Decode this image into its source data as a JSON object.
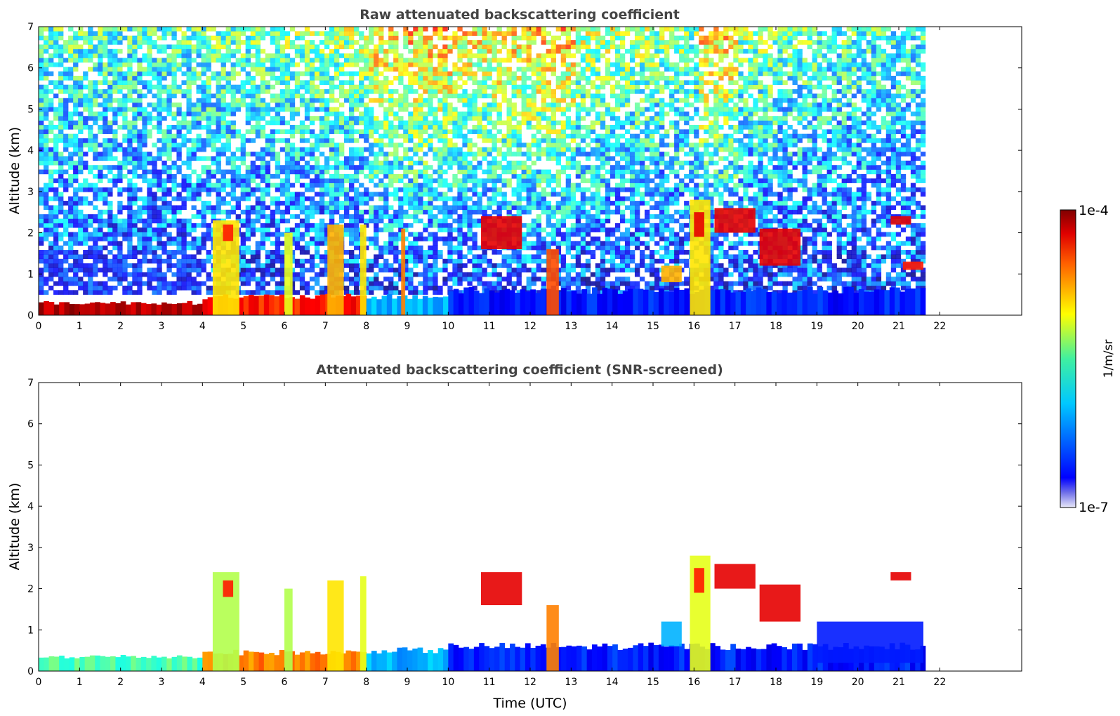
{
  "chart_data": [
    {
      "type": "heatmap",
      "title": "Raw attenuated backscattering coefficient",
      "xlabel": "",
      "ylabel": "Altitude (km)",
      "xlim": [
        0,
        24
      ],
      "ylim": [
        0,
        7
      ],
      "x_ticks": [
        "0",
        "1",
        "2",
        "3",
        "4",
        "5",
        "6",
        "7",
        "8",
        "9",
        "10",
        "11",
        "12",
        "13",
        "14",
        "15",
        "16",
        "17",
        "18",
        "19",
        "20",
        "21",
        "22"
      ],
      "y_ticks": [
        "0",
        "1",
        "2",
        "3",
        "4",
        "5",
        "6",
        "7"
      ],
      "data_end_time": 21.65,
      "noise_profile": [
        0.55,
        0.55,
        0.5,
        0.55,
        0.6,
        0.6,
        0.65,
        0.7,
        0.95,
        1.0,
        0.9,
        0.95,
        1.0,
        0.75,
        0.7,
        0.65,
        1.0,
        0.65,
        0.6,
        0.55,
        0.5,
        0.5
      ],
      "boundary_layer": [
        {
          "t0": 0,
          "t1": 4.0,
          "top": 0.3,
          "level": 0.95
        },
        {
          "t0": 4.0,
          "t1": 8.0,
          "top": 0.45,
          "level": 0.85
        },
        {
          "t0": 8.0,
          "t1": 10.0,
          "top": 0.45,
          "level": 0.3
        },
        {
          "t0": 10.0,
          "t1": 21.65,
          "top": 0.6,
          "level": 0.15
        }
      ],
      "features": [
        {
          "t0": 4.25,
          "t1": 4.9,
          "z0": 0,
          "z1": 2.3,
          "level": 0.65
        },
        {
          "t0": 4.5,
          "t1": 4.75,
          "z0": 1.8,
          "z1": 2.2,
          "level": 0.85
        },
        {
          "t0": 6.0,
          "t1": 6.2,
          "z0": 0,
          "z1": 2.0,
          "level": 0.6
        },
        {
          "t0": 7.05,
          "t1": 7.45,
          "z0": 0,
          "z1": 2.2,
          "level": 0.7
        },
        {
          "t0": 7.85,
          "t1": 8.0,
          "z0": 0,
          "z1": 2.2,
          "level": 0.65
        },
        {
          "t0": 8.85,
          "t1": 8.95,
          "z0": 0,
          "z1": 2.1,
          "level": 0.75
        },
        {
          "t0": 10.8,
          "t1": 11.8,
          "z0": 1.6,
          "z1": 2.4,
          "level": 0.9
        },
        {
          "t0": 12.4,
          "t1": 12.7,
          "z0": 0,
          "z1": 1.6,
          "level": 0.8
        },
        {
          "t0": 15.2,
          "t1": 15.7,
          "z0": 0.8,
          "z1": 1.2,
          "level": 0.7
        },
        {
          "t0": 15.9,
          "t1": 16.4,
          "z0": 0,
          "z1": 2.8,
          "level": 0.65
        },
        {
          "t0": 16.0,
          "t1": 16.25,
          "z0": 1.9,
          "z1": 2.5,
          "level": 0.9
        },
        {
          "t0": 16.5,
          "t1": 17.5,
          "z0": 2.0,
          "z1": 2.6,
          "level": 0.9
        },
        {
          "t0": 17.6,
          "t1": 18.6,
          "z0": 1.2,
          "z1": 2.1,
          "level": 0.9
        },
        {
          "t0": 20.8,
          "t1": 21.3,
          "z0": 2.2,
          "z1": 2.4,
          "level": 0.9
        },
        {
          "t0": 21.1,
          "t1": 21.6,
          "z0": 1.1,
          "z1": 1.3,
          "level": 0.85
        }
      ]
    },
    {
      "type": "heatmap",
      "title": "Attenuated backscattering coefficient (SNR-screened)",
      "xlabel": "Time (UTC)",
      "ylabel": "Altitude (km)",
      "xlim": [
        0,
        24
      ],
      "ylim": [
        0,
        7
      ],
      "x_ticks": [
        "0",
        "1",
        "2",
        "3",
        "4",
        "5",
        "6",
        "7",
        "8",
        "9",
        "10",
        "11",
        "12",
        "13",
        "14",
        "15",
        "16",
        "17",
        "18",
        "19",
        "20",
        "21",
        "22"
      ],
      "y_ticks": [
        "0",
        "1",
        "2",
        "3",
        "4",
        "5",
        "6",
        "7"
      ],
      "data_end_time": 21.65,
      "boundary_layer": [
        {
          "t0": 0,
          "t1": 4.0,
          "top": 0.35,
          "level": 0.45
        },
        {
          "t0": 4.0,
          "t1": 8.0,
          "top": 0.45,
          "level": 0.75
        },
        {
          "t0": 8.0,
          "t1": 10.0,
          "top": 0.5,
          "level": 0.3
        },
        {
          "t0": 10.0,
          "t1": 21.65,
          "top": 0.6,
          "level": 0.15
        }
      ],
      "features": [
        {
          "t0": 4.25,
          "t1": 4.9,
          "z0": 0,
          "z1": 2.4,
          "level": 0.55
        },
        {
          "t0": 4.5,
          "t1": 4.75,
          "z0": 1.8,
          "z1": 2.2,
          "level": 0.85
        },
        {
          "t0": 6.0,
          "t1": 6.2,
          "z0": 0,
          "z1": 2.0,
          "level": 0.55
        },
        {
          "t0": 7.05,
          "t1": 7.45,
          "z0": 0,
          "z1": 2.2,
          "level": 0.65
        },
        {
          "t0": 7.85,
          "t1": 8.0,
          "z0": 0,
          "z1": 2.3,
          "level": 0.6
        },
        {
          "t0": 10.8,
          "t1": 11.8,
          "z0": 1.6,
          "z1": 2.4,
          "level": 0.9
        },
        {
          "t0": 12.4,
          "t1": 12.7,
          "z0": 0,
          "z1": 1.6,
          "level": 0.75
        },
        {
          "t0": 15.2,
          "t1": 15.7,
          "z0": 0.6,
          "z1": 1.2,
          "level": 0.3
        },
        {
          "t0": 15.9,
          "t1": 16.4,
          "z0": 0,
          "z1": 2.8,
          "level": 0.6
        },
        {
          "t0": 16.0,
          "t1": 16.25,
          "z0": 1.9,
          "z1": 2.5,
          "level": 0.85
        },
        {
          "t0": 16.5,
          "t1": 17.5,
          "z0": 2.0,
          "z1": 2.6,
          "level": 0.9
        },
        {
          "t0": 17.6,
          "t1": 18.6,
          "z0": 1.2,
          "z1": 2.1,
          "level": 0.9
        },
        {
          "t0": 19.0,
          "t1": 21.6,
          "z0": 0.2,
          "z1": 1.2,
          "level": 0.15
        },
        {
          "t0": 20.8,
          "t1": 21.3,
          "z0": 2.2,
          "z1": 2.4,
          "level": 0.9
        }
      ]
    }
  ],
  "colorbar": {
    "max_label": "1e-4",
    "min_label": "1e-7",
    "unit_label": "1/m/sr",
    "colormap": "jet"
  }
}
